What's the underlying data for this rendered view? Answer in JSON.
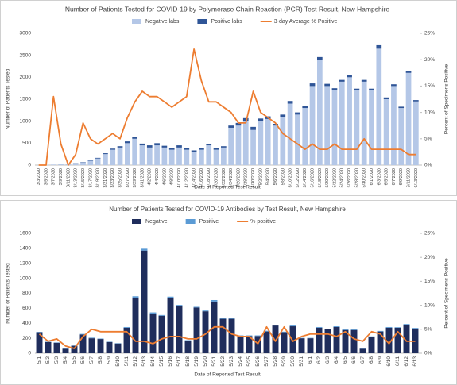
{
  "chart_data": [
    {
      "type": "bar",
      "title": "Number of Patients Tested for COVID-19 by Polymerase Chain Reaction (PCR) Test Result, New Hampshire",
      "x_label": "Date of Reported Test Result",
      "y_label": "Number of Patients Tested",
      "y2_label": "Percent of Specimens Positive",
      "grid": false,
      "categories": [
        "3/3/2020",
        "3/5/2020",
        "3/7/2020",
        "3/9/2020",
        "3/11/2020",
        "3/13/2020",
        "3/15/2020",
        "3/17/2020",
        "3/19/2020",
        "3/21/2020",
        "3/23/2020",
        "3/25/2020",
        "3/27/2020",
        "3/29/2020",
        "3/31/2020",
        "4/2/2020",
        "4/4/2020",
        "4/6/2020",
        "4/8/2020",
        "4/10/2020",
        "4/12/2020",
        "4/14/2020",
        "4/16/2020",
        "4/18/2020",
        "4/20/2020",
        "4/22/2020",
        "4/24/2020",
        "4/26/2020",
        "4/28/2020",
        "4/30/2020",
        "5/2/2020",
        "5/4/2020",
        "5/6/2020",
        "5/8/2020",
        "5/10/2020",
        "5/12/2020",
        "5/14/2020",
        "5/16/2020",
        "5/18/2020",
        "5/20/2020",
        "5/22/2020",
        "5/24/2020",
        "5/26/2020",
        "5/28/2020",
        "5/30/2020",
        "6/1/2020",
        "6/3/2020",
        "6/5/2020",
        "6/7/2020",
        "6/9/2020",
        "6/11/2020",
        "6/13/2020"
      ],
      "ylim": [
        0,
        3000
      ],
      "yticks": [
        0,
        500,
        1000,
        1500,
        2000,
        2500,
        3000
      ],
      "y2lim": [
        0,
        25
      ],
      "y2ticks": [
        {
          "value": 0,
          "label": "0%"
        },
        {
          "value": 5,
          "label": "5%"
        },
        {
          "value": 10,
          "label": "10%"
        },
        {
          "value": 15,
          "label": "15%"
        },
        {
          "value": 20,
          "label": "20%"
        },
        {
          "value": 25,
          "label": "25%"
        }
      ],
      "series": [
        {
          "name": "Negative labs",
          "type": "bar",
          "color": "#b4c7e7",
          "values": [
            0,
            5,
            10,
            20,
            30,
            40,
            60,
            100,
            150,
            250,
            350,
            400,
            500,
            600,
            450,
            400,
            450,
            400,
            350,
            400,
            350,
            300,
            350,
            450,
            350,
            400,
            850,
            900,
            1000,
            800,
            1000,
            1050,
            900,
            1100,
            1400,
            1150,
            1300,
            1800,
            2400,
            1800,
            1700,
            1900,
            2000,
            1700,
            1900,
            1700,
            2650,
            1500,
            1800,
            1300,
            2100,
            1450
          ]
        },
        {
          "name": "Positive labs",
          "type": "bar",
          "color": "#2f5597",
          "values": [
            0,
            0,
            1,
            2,
            3,
            5,
            8,
            10,
            15,
            20,
            25,
            30,
            40,
            50,
            40,
            50,
            50,
            40,
            40,
            50,
            40,
            35,
            30,
            35,
            30,
            30,
            50,
            60,
            70,
            70,
            60,
            60,
            40,
            50,
            60,
            50,
            40,
            60,
            60,
            50,
            50,
            40,
            50,
            40,
            40,
            40,
            80,
            40,
            40,
            30,
            50,
            30
          ]
        },
        {
          "name": "3-day Average % Positive",
          "type": "line",
          "axis": "y2",
          "color": "#ed7d31",
          "values": [
            0,
            0,
            13,
            4,
            0,
            2,
            8,
            5,
            4,
            5,
            6,
            5,
            9,
            12,
            14,
            13,
            13,
            12,
            11,
            12,
            13,
            22,
            16,
            12,
            12,
            11,
            10,
            8,
            8,
            14,
            10,
            9,
            8,
            6,
            5,
            4,
            3,
            4,
            3,
            3,
            4,
            3,
            3,
            3,
            5,
            3,
            3,
            3,
            3,
            3,
            2,
            2
          ]
        }
      ]
    },
    {
      "type": "bar",
      "title": "Number of Patients Tested for COVID-19 Antibodies by Test Result, New Hampshire",
      "x_label": "Date of Reported Test Result",
      "y_label": "Number of Patients Tested",
      "y2_label": "Percent of Specimens Positive",
      "grid": false,
      "categories": [
        "5/1",
        "5/2",
        "5/3",
        "5/4",
        "5/5",
        "5/6",
        "5/7",
        "5/8",
        "5/9",
        "5/10",
        "5/11",
        "5/12",
        "5/13",
        "5/14",
        "5/15",
        "5/16",
        "5/17",
        "5/18",
        "5/19",
        "5/20",
        "5/21",
        "5/22",
        "5/23",
        "5/24",
        "5/25",
        "5/26",
        "5/27",
        "5/28",
        "5/29",
        "5/30",
        "5/31",
        "6/1",
        "6/2",
        "6/3",
        "6/4",
        "6/5",
        "6/6",
        "6/7",
        "6/8",
        "6/9",
        "6/10",
        "6/11",
        "6/12",
        "6/13"
      ],
      "ylim": [
        0,
        1600
      ],
      "yticks": [
        0,
        200,
        400,
        600,
        800,
        1000,
        1200,
        1400,
        1600
      ],
      "y2lim": [
        0,
        25
      ],
      "y2ticks": [
        {
          "value": 0,
          "label": "0%"
        },
        {
          "value": 5,
          "label": "5%"
        },
        {
          "value": 10,
          "label": "10%"
        },
        {
          "value": 15,
          "label": "15%"
        },
        {
          "value": 20,
          "label": "20%"
        },
        {
          "value": 25,
          "label": "25%"
        }
      ],
      "series": [
        {
          "name": "Negative",
          "type": "bar",
          "color": "#1f2d5c",
          "values": [
            280,
            150,
            140,
            60,
            100,
            250,
            200,
            190,
            150,
            130,
            340,
            740,
            1370,
            530,
            500,
            740,
            630,
            170,
            610,
            560,
            690,
            460,
            460,
            230,
            230,
            230,
            290,
            370,
            280,
            360,
            200,
            200,
            340,
            320,
            350,
            310,
            310,
            60,
            220,
            290,
            340,
            340,
            380,
            330
          ]
        },
        {
          "name": "Positive",
          "type": "bar",
          "color": "#5b9bd5",
          "values": [
            5,
            5,
            5,
            3,
            3,
            8,
            8,
            6,
            5,
            5,
            10,
            20,
            25,
            15,
            10,
            15,
            15,
            5,
            10,
            10,
            20,
            15,
            15,
            8,
            8,
            8,
            10,
            10,
            8,
            10,
            5,
            5,
            10,
            8,
            10,
            8,
            8,
            3,
            5,
            8,
            10,
            8,
            10,
            8
          ]
        },
        {
          "name": "% positive",
          "type": "line",
          "axis": "y2",
          "color": "#ed7d31",
          "values": [
            4,
            2.5,
            3,
            1.5,
            1,
            3.5,
            5,
            4.5,
            4.5,
            4.5,
            4.5,
            2.5,
            2.5,
            2,
            3,
            3.5,
            3.5,
            3,
            3,
            4,
            5.5,
            5.5,
            4,
            3.5,
            3.5,
            2,
            5.5,
            2.5,
            5.5,
            2.5,
            3.5,
            4,
            4,
            4,
            3.5,
            4.5,
            3,
            2.5,
            4.5,
            4,
            2,
            4.5,
            2.5,
            2.5
          ]
        }
      ]
    }
  ]
}
